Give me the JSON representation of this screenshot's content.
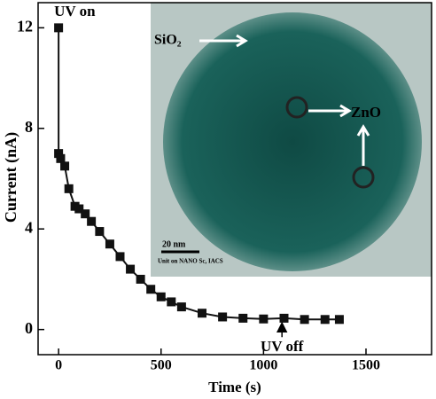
{
  "chart_data": {
    "type": "scatter",
    "xlabel": "Time (s)",
    "ylabel": "Current (nA)",
    "x": [
      0,
      0,
      10,
      30,
      50,
      80,
      100,
      130,
      160,
      200,
      250,
      300,
      350,
      400,
      450,
      500,
      550,
      600,
      700,
      800,
      900,
      1000,
      1100,
      1200,
      1300,
      1370
    ],
    "series": [
      {
        "name": "Current",
        "color": "#111111",
        "values": [
          12,
          7,
          6.8,
          6.5,
          5.6,
          4.9,
          4.8,
          4.6,
          4.3,
          3.9,
          3.4,
          2.9,
          2.4,
          2.0,
          1.6,
          1.3,
          1.1,
          0.9,
          0.65,
          0.5,
          0.45,
          0.42,
          0.45,
          0.4,
          0.4,
          0.4
        ]
      }
    ],
    "xlim": [
      -100,
      1820
    ],
    "ylim": [
      -1,
      13
    ],
    "xticks": [
      0,
      500,
      1000,
      1500
    ],
    "yticks": [
      0,
      4,
      8,
      12
    ],
    "annotations": [
      {
        "text": "UV on",
        "x": 0,
        "y": 12
      },
      {
        "text": "UV off",
        "x": 1090,
        "y": 0.4
      }
    ],
    "inset": {
      "labels": [
        "SiO₂",
        "ZnO",
        "20 nm",
        "Unit on NANO Sc, IACS"
      ]
    }
  }
}
